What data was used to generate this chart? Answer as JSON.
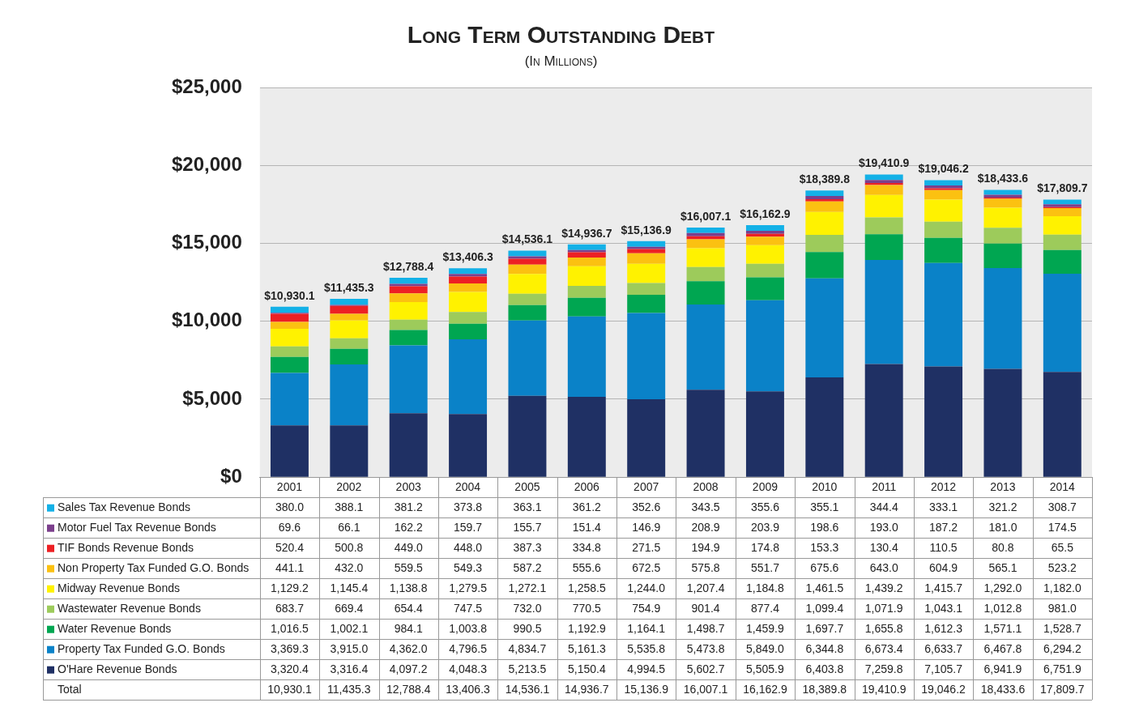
{
  "chart_data": {
    "type": "bar",
    "title": "Long Term Outstanding Debt",
    "subtitle": "(In Millions)",
    "categories": [
      "2001",
      "2002",
      "2003",
      "2004",
      "2005",
      "2006",
      "2007",
      "2008",
      "2009",
      "2010",
      "2011",
      "2012",
      "2013",
      "2014"
    ],
    "stacked": true,
    "grid": "y",
    "legend": "bottom left",
    "ylim": [
      0,
      25000
    ],
    "yticks": [
      {
        "value": 0,
        "label": "$0"
      },
      {
        "value": 5000,
        "label": "$5,000"
      },
      {
        "value": 10000,
        "label": "$10,000"
      },
      {
        "value": 15000,
        "label": "$15,000"
      },
      {
        "value": 20000,
        "label": "$20,000"
      },
      {
        "value": 25000,
        "label": "$25,000"
      }
    ],
    "series": [
      {
        "name": "O'Hare Revenue Bonds",
        "color": "#1f3064",
        "values": [
          3320.4,
          3316.4,
          4097.2,
          4048.3,
          5213.5,
          5150.4,
          4994.5,
          5602.7,
          5505.9,
          6403.8,
          7259.8,
          7105.7,
          6941.9,
          6751.9
        ],
        "value_labels": [
          "3,320.4",
          "3,316.4",
          "4,097.2",
          "4,048.3",
          "5,213.5",
          "5,150.4",
          "4,994.5",
          "5,602.7",
          "5,505.9",
          "6,403.8",
          "7,259.8",
          "7,105.7",
          "6,941.9",
          "6,751.9"
        ]
      },
      {
        "name": "Property Tax Funded G.O. Bonds",
        "color": "#0a82c8",
        "values": [
          3369.3,
          3915.0,
          4362.0,
          4796.5,
          4834.7,
          5161.3,
          5535.8,
          5473.8,
          5849.0,
          6344.8,
          6673.4,
          6633.7,
          6467.8,
          6294.2
        ],
        "value_labels": [
          "3,369.3",
          "3,915.0",
          "4,362.0",
          "4,796.5",
          "4,834.7",
          "5,161.3",
          "5,535.8",
          "5,473.8",
          "5,849.0",
          "6,344.8",
          "6,673.4",
          "6,633.7",
          "6,467.8",
          "6,294.2"
        ]
      },
      {
        "name": "Water Revenue Bonds",
        "color": "#00a651",
        "values": [
          1016.5,
          1002.1,
          984.1,
          1003.8,
          990.5,
          1192.9,
          1164.1,
          1498.7,
          1459.9,
          1697.7,
          1655.8,
          1612.3,
          1571.1,
          1528.7
        ],
        "value_labels": [
          "1,016.5",
          "1,002.1",
          "984.1",
          "1,003.8",
          "990.5",
          "1,192.9",
          "1,164.1",
          "1,498.7",
          "1,459.9",
          "1,697.7",
          "1,655.8",
          "1,612.3",
          "1,571.1",
          "1,528.7"
        ]
      },
      {
        "name": "Wastewater Revenue Bonds",
        "color": "#9dcb5b",
        "values": [
          683.7,
          669.4,
          654.4,
          747.5,
          732.0,
          770.5,
          754.9,
          901.4,
          877.4,
          1099.4,
          1071.9,
          1043.1,
          1012.8,
          981.0
        ],
        "value_labels": [
          "683.7",
          "669.4",
          "654.4",
          "747.5",
          "732.0",
          "770.5",
          "754.9",
          "901.4",
          "877.4",
          "1,099.4",
          "1,071.9",
          "1,043.1",
          "1,012.8",
          "981.0"
        ]
      },
      {
        "name": "Midway Revenue Bonds",
        "color": "#fff200",
        "values": [
          1129.2,
          1145.4,
          1138.8,
          1279.5,
          1272.1,
          1258.5,
          1244.0,
          1207.4,
          1184.8,
          1461.5,
          1439.2,
          1415.7,
          1292.0,
          1182.0
        ],
        "value_labels": [
          "1,129.2",
          "1,145.4",
          "1,138.8",
          "1,279.5",
          "1,272.1",
          "1,258.5",
          "1,244.0",
          "1,207.4",
          "1,184.8",
          "1,461.5",
          "1,439.2",
          "1,415.7",
          "1,292.0",
          "1,182.0"
        ]
      },
      {
        "name": "Non Property Tax Funded G.O. Bonds",
        "color": "#fbc111",
        "values": [
          441.1,
          432.0,
          559.5,
          549.3,
          587.2,
          555.6,
          672.5,
          575.8,
          551.7,
          675.6,
          643.0,
          604.9,
          565.1,
          523.2
        ],
        "value_labels": [
          "441.1",
          "432.0",
          "559.5",
          "549.3",
          "587.2",
          "555.6",
          "672.5",
          "575.8",
          "551.7",
          "675.6",
          "643.0",
          "604.9",
          "565.1",
          "523.2"
        ]
      },
      {
        "name": "TIF Bonds Revenue Bonds",
        "color": "#ed2024",
        "values": [
          520.4,
          500.8,
          449.0,
          448.0,
          387.3,
          334.8,
          271.5,
          194.9,
          174.8,
          153.3,
          130.4,
          110.5,
          80.8,
          65.5
        ],
        "value_labels": [
          "520.4",
          "500.8",
          "449.0",
          "448.0",
          "387.3",
          "334.8",
          "271.5",
          "194.9",
          "174.8",
          "153.3",
          "130.4",
          "110.5",
          "80.8",
          "65.5"
        ]
      },
      {
        "name": "Motor Fuel Tax Revenue Bonds",
        "color": "#7b3f8c",
        "values": [
          69.6,
          66.1,
          162.2,
          159.7,
          155.7,
          151.4,
          146.9,
          208.9,
          203.9,
          198.6,
          193.0,
          187.2,
          181.0,
          174.5
        ],
        "value_labels": [
          "69.6",
          "66.1",
          "162.2",
          "159.7",
          "155.7",
          "151.4",
          "146.9",
          "208.9",
          "203.9",
          "198.6",
          "193.0",
          "187.2",
          "181.0",
          "174.5"
        ]
      },
      {
        "name": "Sales Tax Revenue Bonds",
        "color": "#14b1e7",
        "values": [
          380.0,
          388.1,
          381.2,
          373.8,
          363.1,
          361.2,
          352.6,
          343.5,
          355.6,
          355.1,
          344.4,
          333.1,
          321.2,
          308.7
        ],
        "value_labels": [
          "380.0",
          "388.1",
          "381.2",
          "373.8",
          "363.1",
          "361.2",
          "352.6",
          "343.5",
          "355.6",
          "355.1",
          "344.4",
          "333.1",
          "321.2",
          "308.7"
        ]
      }
    ],
    "totals": [
      "$10,930.1",
      "$11,435.3",
      "$12,788.4",
      "$13,406.3",
      "$14,536.1",
      "$14,936.7",
      "$15,136.9",
      "$16,007.1",
      "$16,162.9",
      "$18,389.8",
      "$19,410.9",
      "$19,046.2",
      "$18,433.6",
      "$17,809.7"
    ],
    "annotations": [
      "Total",
      "10,930.1",
      "11,435.3",
      "12,788.4",
      "13,406.3",
      "14,536.1",
      "14,936.7",
      "15,136.9",
      "16,007.1",
      "16,162.9",
      "18,389.8",
      "19,410.9",
      "19,046.2",
      "18,433.6",
      "17,809.7"
    ]
  }
}
